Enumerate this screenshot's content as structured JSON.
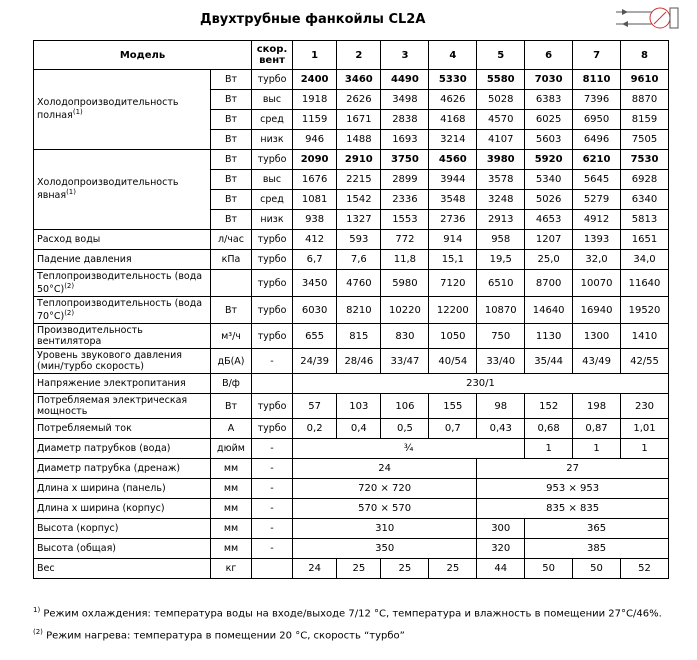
{
  "header": {
    "title": "Двухтрубные фанкойлы CL2A"
  },
  "table": {
    "columns": {
      "model": "Модель",
      "speed": "скор. вент",
      "models": [
        "1",
        "2",
        "3",
        "4",
        "5",
        "6",
        "7",
        "8"
      ]
    },
    "groups": [
      {
        "label": "Холодопроизводительность полная",
        "sup": "(1)",
        "rows": [
          {
            "unit": "Вт",
            "speed": "турбо",
            "emphasis": true,
            "cells": [
              "2400",
              "3460",
              "4490",
              "5330",
              "5580",
              "7030",
              "8110",
              "9610"
            ]
          },
          {
            "unit": "Вт",
            "speed": "выс",
            "cells": [
              "1918",
              "2626",
              "3498",
              "4626",
              "5028",
              "6383",
              "7396",
              "8870"
            ]
          },
          {
            "unit": "Вт",
            "speed": "сред",
            "cells": [
              "1159",
              "1671",
              "2838",
              "4168",
              "4570",
              "6025",
              "6950",
              "8159"
            ]
          },
          {
            "unit": "Вт",
            "speed": "низк",
            "cells": [
              "946",
              "1488",
              "1693",
              "3214",
              "4107",
              "5603",
              "6496",
              "7505"
            ]
          }
        ]
      },
      {
        "label": "Холодопроизводительность явная",
        "sup": "(1)",
        "rows": [
          {
            "unit": "Вт",
            "speed": "турбо",
            "emphasis": true,
            "cells": [
              "2090",
              "2910",
              "3750",
              "4560",
              "3980",
              "5920",
              "6210",
              "7530"
            ]
          },
          {
            "unit": "Вт",
            "speed": "выс",
            "cells": [
              "1676",
              "2215",
              "2899",
              "3944",
              "3578",
              "5340",
              "5645",
              "6928"
            ]
          },
          {
            "unit": "Вт",
            "speed": "сред",
            "cells": [
              "1081",
              "1542",
              "2336",
              "3548",
              "3248",
              "5026",
              "5279",
              "6340"
            ]
          },
          {
            "unit": "Вт",
            "speed": "низк",
            "cells": [
              "938",
              "1327",
              "1553",
              "2736",
              "2913",
              "4653",
              "4912",
              "5813"
            ]
          }
        ]
      },
      {
        "label": "Расход воды",
        "rows": [
          {
            "unit": "л/час",
            "speed": "турбо",
            "cells": [
              "412",
              "593",
              "772",
              "914",
              "958",
              "1207",
              "1393",
              "1651"
            ]
          }
        ]
      },
      {
        "label": "Падение давления",
        "rows": [
          {
            "unit": "кПа",
            "speed": "турбо",
            "cells": [
              "6,7",
              "7,6",
              "11,8",
              "15,1",
              "19,5",
              "25,0",
              "32,0",
              "34,0"
            ]
          }
        ]
      },
      {
        "label": "Теплопроизводительность (вода 50°C)",
        "sup": "(2)",
        "rows": [
          {
            "speed": "турбо",
            "cells": [
              "3450",
              "4760",
              "5980",
              "7120",
              "6510",
              "8700",
              "10070",
              "11640"
            ]
          }
        ]
      },
      {
        "label": "Теплопроизводительность (вода 70°C)",
        "sup": "(2)",
        "rows": [
          {
            "unit": "Вт",
            "speed": "турбо",
            "cells": [
              "6030",
              "8210",
              "10220",
              "12200",
              "10870",
              "14640",
              "16940",
              "19520"
            ]
          }
        ]
      },
      {
        "label": "Производительность вентилятора",
        "rows": [
          {
            "unit": "м³/ч",
            "speed": "турбо",
            "cells": [
              "655",
              "815",
              "830",
              "1050",
              "750",
              "1130",
              "1300",
              "1410"
            ]
          }
        ]
      },
      {
        "label": "Уровень звукового давления (мин/турбо скорость)",
        "rows": [
          {
            "unit": "дБ(А)",
            "speed": "-",
            "cells": [
              "24/39",
              "28/46",
              "33/47",
              "40/54",
              "33/40",
              "35/44",
              "43/49",
              "42/55"
            ]
          }
        ]
      },
      {
        "label": "Напряжение электропитания",
        "rows": [
          {
            "unit": "В/ф",
            "cells": [
              "230/1",
              null,
              null,
              null,
              null,
              null,
              null,
              null
            ]
          }
        ]
      },
      {
        "label": "Потребляемая электрическая мощность",
        "rows": [
          {
            "unit": "Вт",
            "speed": "турбо",
            "cells": [
              "57",
              "103",
              "106",
              "155",
              "98",
              "152",
              "198",
              "230"
            ]
          }
        ]
      },
      {
        "label": "Потребляемый ток",
        "rows": [
          {
            "unit": "А",
            "speed": "турбо",
            "cells": [
              "0,2",
              "0,4",
              "0,5",
              "0,7",
              "0,43",
              "0,68",
              "0,87",
              "1,01"
            ]
          }
        ]
      },
      {
        "label": "Диаметр патрубков (вода)",
        "rows": [
          {
            "unit": "дюйм",
            "speed": "-",
            "cells": [
              "¾",
              null,
              null,
              null,
              null,
              "1",
              "1",
              "1"
            ]
          }
        ]
      },
      {
        "label": "Диаметр патрубка (дренаж)",
        "rows": [
          {
            "unit": "мм",
            "speed": "-",
            "cells": [
              "24",
              null,
              null,
              null,
              "27",
              null,
              null,
              null
            ]
          }
        ]
      },
      {
        "label": "Длина х ширина (панель)",
        "rows": [
          {
            "unit": "мм",
            "speed": "-",
            "cells": [
              "720 × 720",
              null,
              null,
              null,
              "953 × 953",
              null,
              null,
              null
            ]
          }
        ]
      },
      {
        "label": "Длина х ширина (корпус)",
        "rows": [
          {
            "unit": "мм",
            "speed": "-",
            "cells": [
              "570 × 570",
              null,
              null,
              null,
              "835 × 835",
              null,
              null,
              null
            ]
          }
        ]
      },
      {
        "label": "Высота (корпус)",
        "rows": [
          {
            "unit": "мм",
            "speed": "-",
            "cells": [
              "310",
              null,
              null,
              null,
              "300",
              "365",
              null,
              null
            ]
          }
        ]
      },
      {
        "label": "Высота (общая)",
        "rows": [
          {
            "unit": "мм",
            "speed": "-",
            "cells": [
              "350",
              null,
              null,
              null,
              "320",
              "385",
              null,
              null
            ]
          }
        ]
      },
      {
        "label": "Вес",
        "rows": [
          {
            "unit": "кг",
            "cells": [
              "24",
              "25",
              "25",
              "25",
              "44",
              "50",
              "50",
              "52"
            ]
          }
        ]
      }
    ]
  },
  "footnotes": [
    {
      "mark": "1)",
      "text": "Режим охлаждения: температура воды на входе/выходе 7/12 °C, температура и влажность в помещении 27°C/46%."
    },
    {
      "mark": "(2)",
      "text": "Режим нагрева: температура в помещении 20 °C, скорость “турбо”"
    }
  ]
}
